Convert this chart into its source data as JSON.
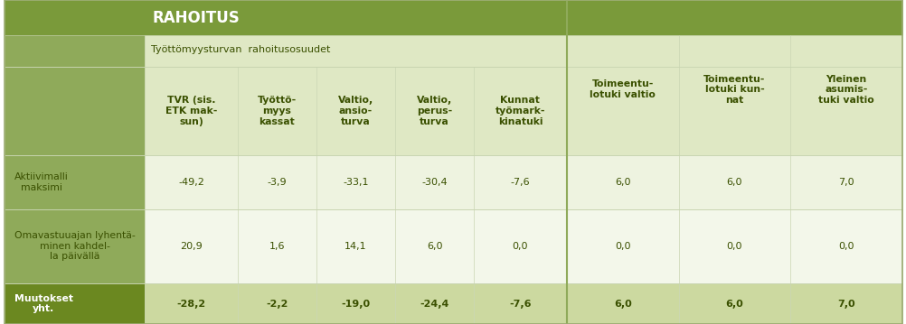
{
  "title": "RAHOITUS",
  "subheader1": "Työttömyysturvan  rahoitusosuudet",
  "col_headers_group1": [
    "TVR (sis.\nETK mak-\nsun)",
    "Työttö-\nmyys\nkassat",
    "Valtio,\nansio-\nturva",
    "Valtio,\nperus-\nturva",
    "Kunnat\ntyömark-\nkinatuki"
  ],
  "col_headers_group2": [
    "Toimeentu-\nlotuki valtio",
    "Toimeentu-\nlotuki kun-\nnat",
    "Yleinen\nasumis-\ntuki valtio"
  ],
  "row_labels": [
    "Aktiivimalli\nmaksimi",
    "Omavastuuajan lyhentä-\nminen kahdel-\nla päivällä",
    "Muutokset\nyht."
  ],
  "row_bold": [
    false,
    false,
    true
  ],
  "data": [
    [
      "-49,2",
      "-3,9",
      "-33,1",
      "-30,4",
      "-7,6",
      "6,0",
      "6,0",
      "7,0"
    ],
    [
      "20,9",
      "1,6",
      "14,1",
      "6,0",
      "0,0",
      "0,0",
      "0,0",
      "0,0"
    ],
    [
      "-28,2",
      "-2,2",
      "-19,0",
      "-24,4",
      "-7,6",
      "6,0",
      "6,0",
      "7,0"
    ]
  ],
  "color_title_bg": "#7a9a3a",
  "color_left_col_bg": "#8faa5a",
  "color_left_col_total_bg": "#6b8820",
  "color_subheader_bg": "#dfe8c4",
  "color_data_row1_bg": "#eef3e0",
  "color_data_row2_bg": "#f3f7ea",
  "color_data_total_bg": "#ccd9a0",
  "color_sep": "#c8d4b0",
  "color_sep_thick": "#8faa5a",
  "color_text_dark": "#3a5000",
  "color_text_white": "#ffffff",
  "color_border": "#9aaa70"
}
